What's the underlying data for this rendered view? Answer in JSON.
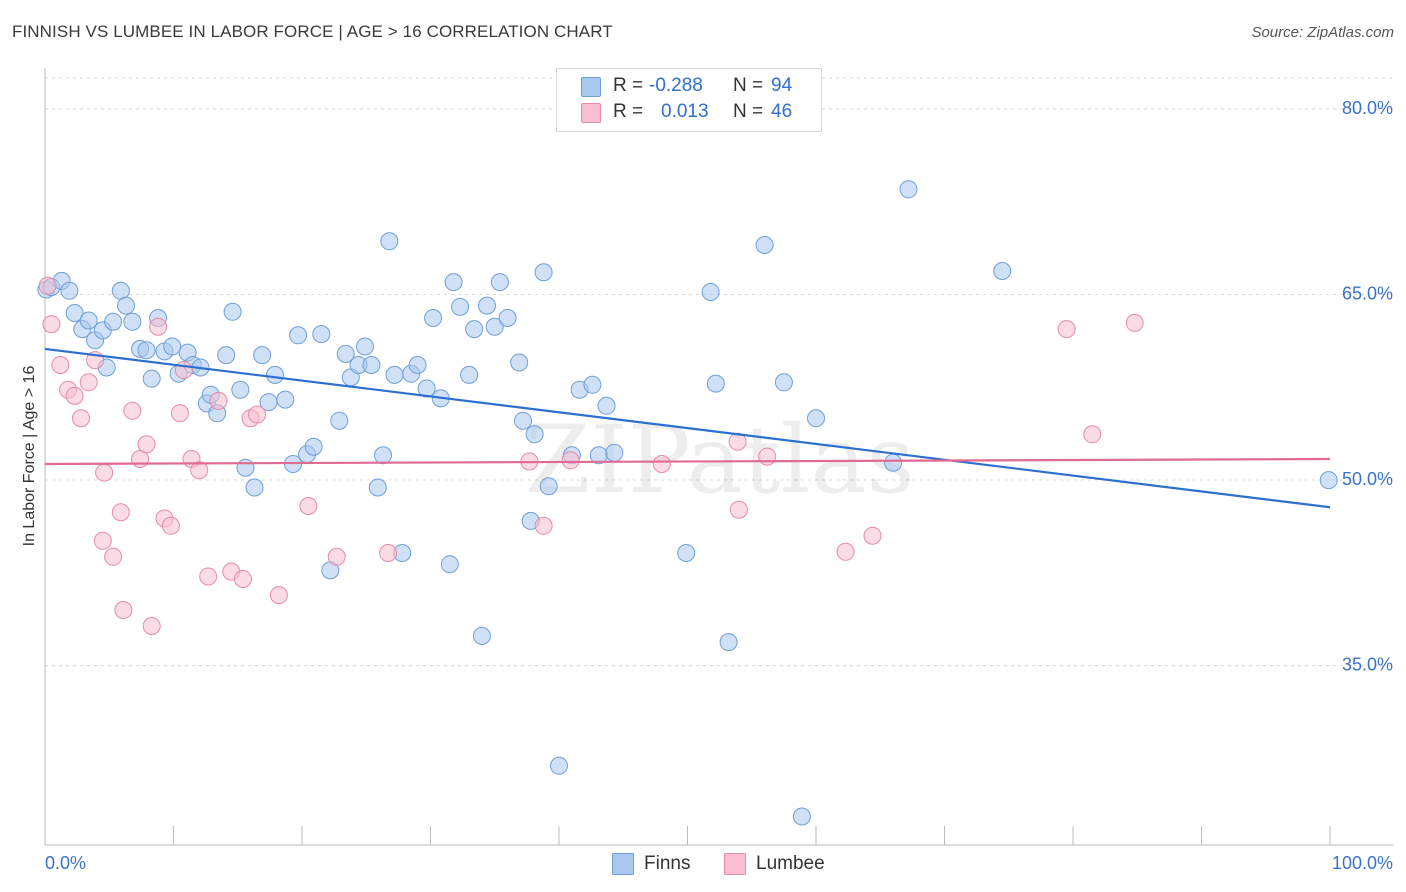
{
  "title": "FINNISH VS LUMBEE IN LABOR FORCE | AGE > 16 CORRELATION CHART",
  "source": "Source: ZipAtlas.com",
  "watermark": "ZIPatlas",
  "colors": {
    "finns_fill": "#a9c8f0",
    "finns_stroke": "#6f9fd8",
    "finns_line": "#2c6fd1",
    "lumbee_fill": "#f7bfd0",
    "lumbee_stroke": "#e88aa8",
    "lumbee_line": "#e06a92",
    "axis_label": "#3a73c9",
    "grid": "#d8d8d8"
  },
  "legend": {
    "rows": [
      {
        "r_label": "R = ",
        "r_value": "-0.288",
        "n_label": "N = ",
        "n_value": "94"
      },
      {
        "r_label": "R = ",
        "r_value": "0.013",
        "n_label": "N = ",
        "n_value": "46"
      }
    ]
  },
  "bottom_legend": {
    "finns": "Finns",
    "lumbee": "Lumbee"
  },
  "chart_data": {
    "type": "scatter",
    "title": "FINNISH VS LUMBEE IN LABOR FORCE | AGE > 16 CORRELATION CHART",
    "xlabel": "",
    "ylabel": "In Labor Force | Age > 16",
    "xlim": [
      0,
      100
    ],
    "ylim": [
      20.5,
      82.5
    ],
    "x_tick_labels": [
      "0.0%",
      "100.0%"
    ],
    "y_ticks": [
      35,
      50,
      65,
      80
    ],
    "y_tick_labels": [
      "35.0%",
      "50.0%",
      "65.0%",
      "80.0%"
    ],
    "grid": true,
    "legend_placement": "top-center",
    "series": [
      {
        "name": "Finns",
        "r": -0.288,
        "n": 94,
        "trend": {
          "x": [
            0,
            100
          ],
          "y": [
            60.6,
            47.8
          ]
        },
        "points": [
          [
            0.1,
            65.4
          ],
          [
            0.5,
            65.6
          ],
          [
            1.3,
            66.1
          ],
          [
            1.9,
            65.3
          ],
          [
            2.3,
            63.5
          ],
          [
            2.9,
            62.2
          ],
          [
            3.4,
            62.9
          ],
          [
            3.9,
            61.3
          ],
          [
            4.5,
            62.1
          ],
          [
            4.8,
            59.1
          ],
          [
            5.3,
            62.8
          ],
          [
            5.9,
            65.3
          ],
          [
            6.3,
            64.1
          ],
          [
            6.8,
            62.8
          ],
          [
            7.4,
            60.6
          ],
          [
            7.9,
            60.5
          ],
          [
            8.3,
            58.2
          ],
          [
            8.8,
            63.1
          ],
          [
            9.3,
            60.4
          ],
          [
            9.9,
            60.8
          ],
          [
            10.4,
            58.6
          ],
          [
            11.1,
            60.3
          ],
          [
            11.5,
            59.3
          ],
          [
            12.1,
            59.1
          ],
          [
            12.6,
            56.2
          ],
          [
            12.9,
            56.9
          ],
          [
            13.4,
            55.4
          ],
          [
            14.1,
            60.1
          ],
          [
            14.6,
            63.6
          ],
          [
            15.2,
            57.3
          ],
          [
            15.6,
            51.0
          ],
          [
            16.3,
            49.4
          ],
          [
            16.9,
            60.1
          ],
          [
            17.4,
            56.3
          ],
          [
            17.9,
            58.5
          ],
          [
            18.7,
            56.5
          ],
          [
            19.3,
            51.3
          ],
          [
            19.7,
            61.7
          ],
          [
            20.4,
            52.1
          ],
          [
            20.9,
            52.7
          ],
          [
            21.5,
            61.8
          ],
          [
            22.2,
            42.7
          ],
          [
            22.9,
            54.8
          ],
          [
            23.4,
            60.2
          ],
          [
            23.8,
            58.3
          ],
          [
            24.4,
            59.3
          ],
          [
            24.9,
            60.8
          ],
          [
            25.4,
            59.3
          ],
          [
            25.9,
            49.4
          ],
          [
            26.3,
            52.0
          ],
          [
            26.8,
            69.3
          ],
          [
            27.2,
            58.5
          ],
          [
            27.8,
            44.1
          ],
          [
            28.5,
            58.6
          ],
          [
            29.0,
            59.3
          ],
          [
            29.7,
            57.4
          ],
          [
            30.2,
            63.1
          ],
          [
            30.8,
            56.6
          ],
          [
            31.5,
            43.2
          ],
          [
            31.8,
            66.0
          ],
          [
            32.3,
            64.0
          ],
          [
            33.0,
            58.5
          ],
          [
            33.4,
            62.2
          ],
          [
            34.0,
            37.4
          ],
          [
            34.4,
            64.1
          ],
          [
            35.0,
            62.4
          ],
          [
            35.4,
            66.0
          ],
          [
            36.0,
            63.1
          ],
          [
            36.9,
            59.5
          ],
          [
            37.2,
            54.8
          ],
          [
            37.8,
            46.7
          ],
          [
            38.1,
            53.7
          ],
          [
            38.8,
            66.8
          ],
          [
            39.2,
            49.5
          ],
          [
            40.0,
            26.9
          ],
          [
            41.0,
            52.0
          ],
          [
            41.6,
            57.3
          ],
          [
            42.6,
            57.7
          ],
          [
            43.1,
            52.0
          ],
          [
            43.7,
            56.0
          ],
          [
            44.3,
            52.2
          ],
          [
            49.9,
            44.1
          ],
          [
            51.8,
            65.2
          ],
          [
            52.2,
            57.8
          ],
          [
            53.2,
            36.9
          ],
          [
            56.0,
            69.0
          ],
          [
            57.5,
            57.9
          ],
          [
            58.9,
            22.8
          ],
          [
            60.0,
            55.0
          ],
          [
            66.0,
            51.4
          ],
          [
            67.2,
            73.5
          ],
          [
            74.5,
            66.9
          ],
          [
            99.9,
            50.0
          ]
        ]
      },
      {
        "name": "Lumbee",
        "r": 0.013,
        "n": 46,
        "trend": {
          "x": [
            0,
            100
          ],
          "y": [
            51.3,
            51.7
          ]
        },
        "points": [
          [
            0.2,
            65.7
          ],
          [
            0.5,
            62.6
          ],
          [
            1.2,
            59.3
          ],
          [
            1.8,
            57.3
          ],
          [
            2.3,
            56.8
          ],
          [
            2.8,
            55.0
          ],
          [
            3.4,
            57.9
          ],
          [
            3.9,
            59.7
          ],
          [
            4.5,
            45.1
          ],
          [
            4.6,
            50.6
          ],
          [
            5.3,
            43.8
          ],
          [
            5.9,
            47.4
          ],
          [
            6.1,
            39.5
          ],
          [
            6.8,
            55.6
          ],
          [
            7.4,
            51.7
          ],
          [
            7.9,
            52.9
          ],
          [
            8.3,
            38.2
          ],
          [
            8.8,
            62.4
          ],
          [
            9.3,
            46.9
          ],
          [
            9.8,
            46.3
          ],
          [
            10.5,
            55.4
          ],
          [
            10.8,
            58.9
          ],
          [
            11.4,
            51.7
          ],
          [
            12.0,
            50.8
          ],
          [
            12.7,
            42.2
          ],
          [
            13.5,
            56.4
          ],
          [
            14.5,
            42.6
          ],
          [
            15.4,
            42.0
          ],
          [
            16.0,
            55.0
          ],
          [
            16.5,
            55.3
          ],
          [
            18.2,
            40.7
          ],
          [
            20.5,
            47.9
          ],
          [
            22.7,
            43.8
          ],
          [
            26.7,
            44.1
          ],
          [
            37.7,
            51.5
          ],
          [
            38.8,
            46.3
          ],
          [
            40.9,
            51.6
          ],
          [
            48.0,
            51.3
          ],
          [
            53.9,
            53.1
          ],
          [
            54.0,
            47.6
          ],
          [
            56.2,
            51.9
          ],
          [
            62.3,
            44.2
          ],
          [
            64.4,
            45.5
          ],
          [
            79.5,
            62.2
          ],
          [
            81.5,
            53.7
          ],
          [
            84.8,
            62.7
          ]
        ]
      }
    ]
  }
}
